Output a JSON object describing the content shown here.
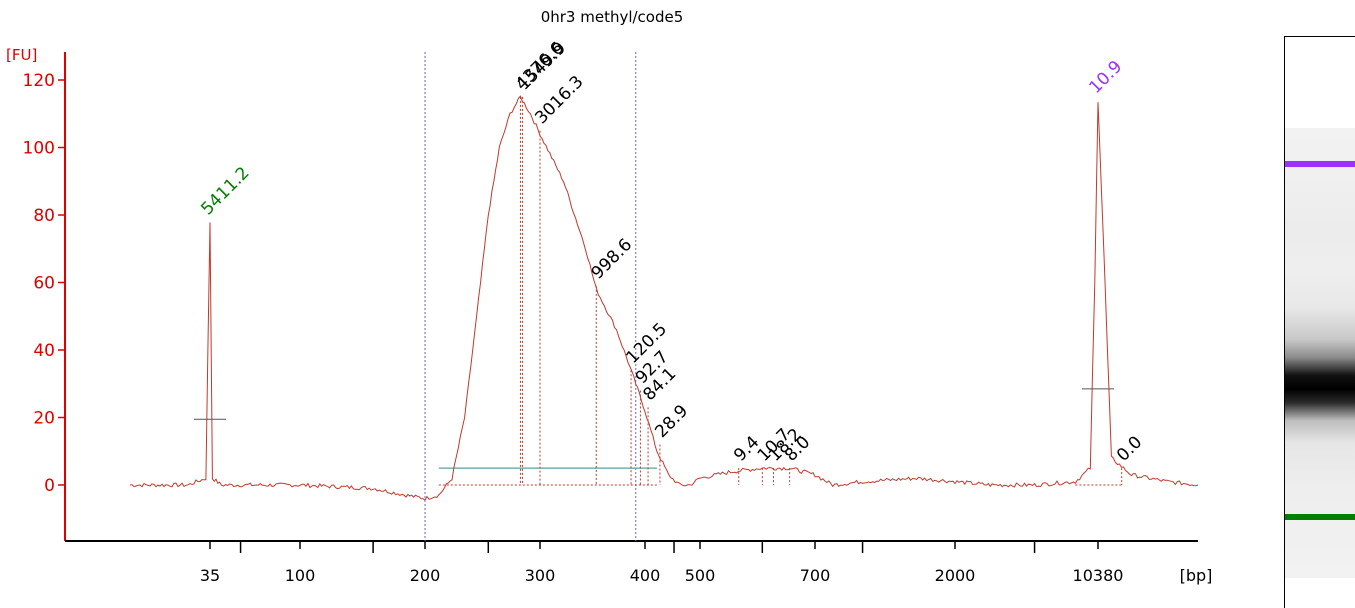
{
  "chart_data": {
    "type": "line",
    "title": "0hr3 methyl/code5",
    "ylabel": "[FU]",
    "xlabel": "[bp]",
    "ylim": [
      -17,
      128
    ],
    "y_ticks": [
      0,
      20,
      40,
      60,
      80,
      100,
      120
    ],
    "x_ticks": [
      "35",
      "100",
      "200",
      "300",
      "400",
      "500",
      "700",
      "2000",
      "10380"
    ],
    "grid": false,
    "colors": {
      "trace": "#c0392b",
      "axis": "#e00000",
      "lower_marker": "#008000",
      "upper_marker": "#9b30ff",
      "region_line": "#6666cc",
      "baseline_fit": "#5f9ea0",
      "peak_label": "#000000"
    },
    "series": [
      {
        "values_by_bp": [
          [
            20,
            0
          ],
          [
            30,
            0
          ],
          [
            34,
            2
          ],
          [
            35,
            78
          ],
          [
            36,
            2
          ],
          [
            40,
            0
          ],
          [
            60,
            0
          ],
          [
            100,
            0
          ],
          [
            150,
            -1
          ],
          [
            180,
            -3
          ],
          [
            200,
            -4
          ],
          [
            210,
            -3
          ],
          [
            220,
            2
          ],
          [
            230,
            20
          ],
          [
            240,
            50
          ],
          [
            250,
            80
          ],
          [
            260,
            100
          ],
          [
            270,
            110
          ],
          [
            280,
            115
          ],
          [
            290,
            110
          ],
          [
            300,
            104
          ],
          [
            320,
            90
          ],
          [
            340,
            70
          ],
          [
            350,
            58
          ],
          [
            370,
            46
          ],
          [
            380,
            38
          ],
          [
            390,
            30
          ],
          [
            400,
            22
          ],
          [
            420,
            10
          ],
          [
            440,
            3
          ],
          [
            460,
            0
          ],
          [
            480,
            0
          ],
          [
            500,
            2
          ],
          [
            550,
            4
          ],
          [
            600,
            5
          ],
          [
            650,
            5
          ],
          [
            700,
            3
          ],
          [
            800,
            0
          ],
          [
            1000,
            1
          ],
          [
            1500,
            2
          ],
          [
            2000,
            1
          ],
          [
            3000,
            0
          ],
          [
            5000,
            0
          ],
          [
            8000,
            1
          ],
          [
            9500,
            5
          ],
          [
            10000,
            60
          ],
          [
            10380,
            114
          ],
          [
            10700,
            60
          ],
          [
            11000,
            8
          ],
          [
            12000,
            3
          ],
          [
            14000,
            1
          ],
          [
            16000,
            0
          ]
        ]
      }
    ],
    "markers": [
      {
        "bp": 35,
        "height": 78,
        "label": "5411.2",
        "kind": "lower"
      },
      {
        "bp": 10380,
        "height": 114,
        "label": "10.9",
        "kind": "upper"
      }
    ],
    "peaks": [
      {
        "bp": 280,
        "height": 115,
        "label": "4376.6"
      },
      {
        "bp": 282,
        "height": 115,
        "label": "1549.9"
      },
      {
        "bp": 300,
        "height": 105,
        "label": "3016.3"
      },
      {
        "bp": 350,
        "height": 59,
        "label": "998.6"
      },
      {
        "bp": 385,
        "height": 34,
        "label": "120.5"
      },
      {
        "bp": 395,
        "height": 28,
        "label": "92.7"
      },
      {
        "bp": 405,
        "height": 23,
        "label": "84.1"
      },
      {
        "bp": 425,
        "height": 12,
        "label": "28.9"
      },
      {
        "bp": 560,
        "height": 5,
        "label": "9.4"
      },
      {
        "bp": 600,
        "height": 5,
        "label": "10.7"
      },
      {
        "bp": 620,
        "height": 5,
        "label": "18.2"
      },
      {
        "bp": 650,
        "height": 5,
        "label": "8.0"
      },
      {
        "bp": 11500,
        "height": 5,
        "label": "0.0"
      }
    ],
    "region": {
      "from_bp": 200,
      "to_bp": 390
    }
  }
}
